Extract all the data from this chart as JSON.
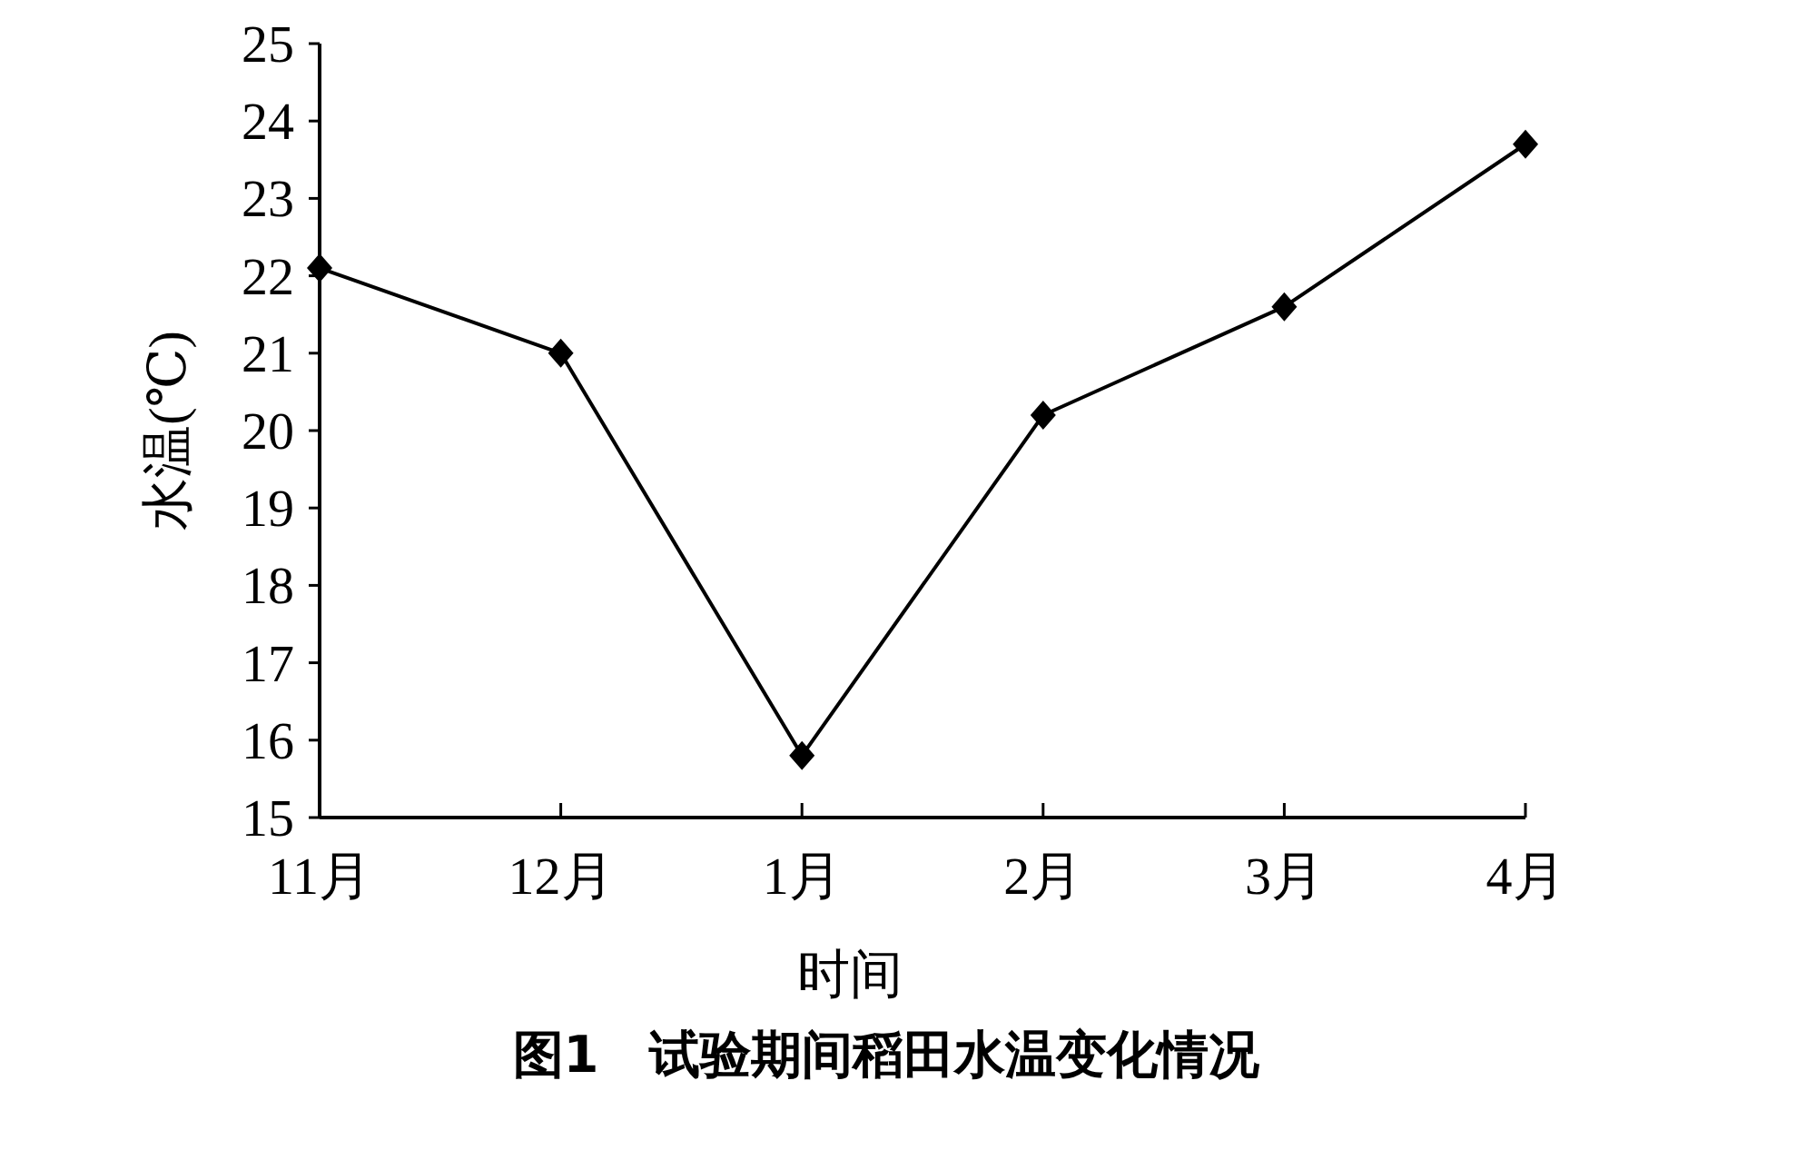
{
  "chart_data": {
    "type": "line",
    "title": "图1　试验期间稻田水温变化情况",
    "xlabel": "时间",
    "ylabel": "水温(℃)",
    "categories": [
      "11月",
      "12月",
      "1月",
      "2月",
      "3月",
      "4月"
    ],
    "series": [
      {
        "color": "#000000",
        "values": [
          22.1,
          21.0,
          15.8,
          20.2,
          21.6,
          23.7
        ]
      }
    ],
    "ylim": [
      15,
      25
    ],
    "yticks": [
      15,
      16,
      17,
      18,
      19,
      20,
      21,
      22,
      23,
      24,
      25
    ],
    "marker": "diamond",
    "line_style": "solid"
  }
}
